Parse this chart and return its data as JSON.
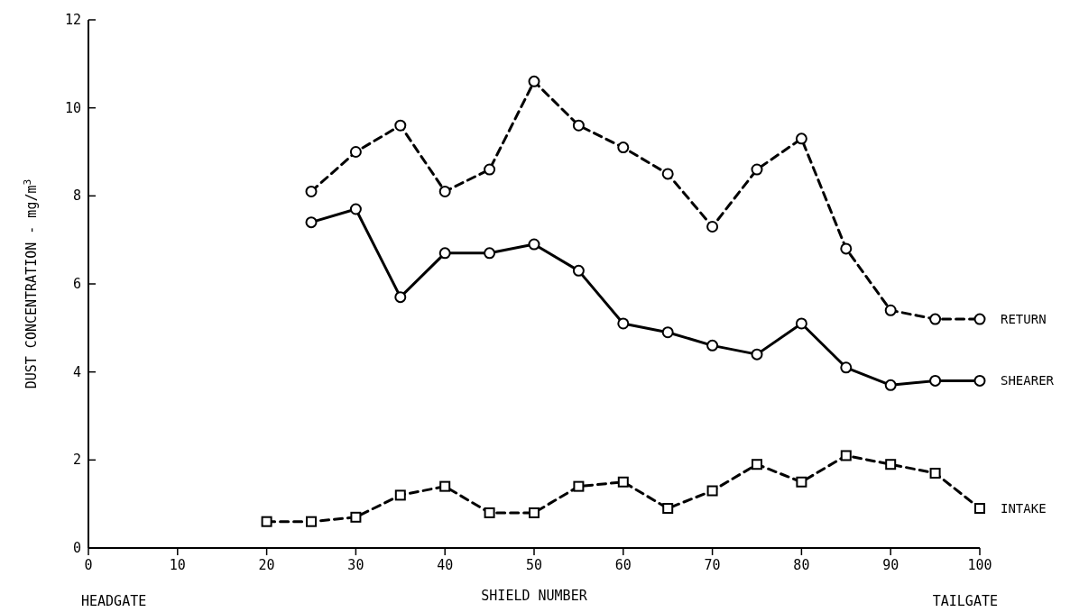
{
  "chart_data": {
    "type": "line",
    "xlabel": "SHIELD NUMBER",
    "ylabel": "DUST CONCENTRATION - mg/m$^{3}$",
    "annotations": [
      "HEADGATE",
      "TAILGATE"
    ],
    "xlim": [
      0,
      100
    ],
    "xticks": [
      0,
      10,
      20,
      30,
      40,
      50,
      60,
      70,
      80,
      90,
      100
    ],
    "ylim": [
      0,
      12
    ],
    "yticks": [
      0,
      2,
      4,
      6,
      8,
      10,
      12
    ],
    "grid": false,
    "series": [
      {
        "name": "RETURN",
        "color": "#000000",
        "line_style": "dashed",
        "marker": "circle",
        "x": [
          25,
          30,
          35,
          40,
          45,
          50,
          55,
          60,
          65,
          70,
          75,
          80,
          85,
          90,
          95,
          100
        ],
        "values": [
          8.1,
          9.0,
          9.6,
          8.1,
          8.6,
          10.6,
          9.6,
          9.1,
          8.5,
          7.3,
          8.6,
          9.3,
          6.8,
          5.4,
          5.2,
          5.2
        ]
      },
      {
        "name": "SHEARER",
        "color": "#000000",
        "line_style": "solid",
        "marker": "circle",
        "x": [
          25,
          30,
          35,
          40,
          45,
          50,
          55,
          60,
          65,
          70,
          75,
          80,
          85,
          90,
          95,
          100
        ],
        "values": [
          7.4,
          7.7,
          5.7,
          6.7,
          6.7,
          6.9,
          6.3,
          5.1,
          4.9,
          4.6,
          4.4,
          5.1,
          4.1,
          3.7,
          3.8,
          3.8
        ]
      },
      {
        "name": "INTAKE",
        "color": "#000000",
        "line_style": "dashed",
        "marker": "square",
        "x": [
          20,
          25,
          30,
          35,
          40,
          45,
          50,
          55,
          60,
          65,
          70,
          75,
          80,
          85,
          90,
          95,
          100
        ],
        "values": [
          0.6,
          0.6,
          0.7,
          1.2,
          1.4,
          0.8,
          0.8,
          1.4,
          1.5,
          0.9,
          1.3,
          1.9,
          1.5,
          2.1,
          1.9,
          1.7,
          0.9
        ]
      }
    ]
  }
}
